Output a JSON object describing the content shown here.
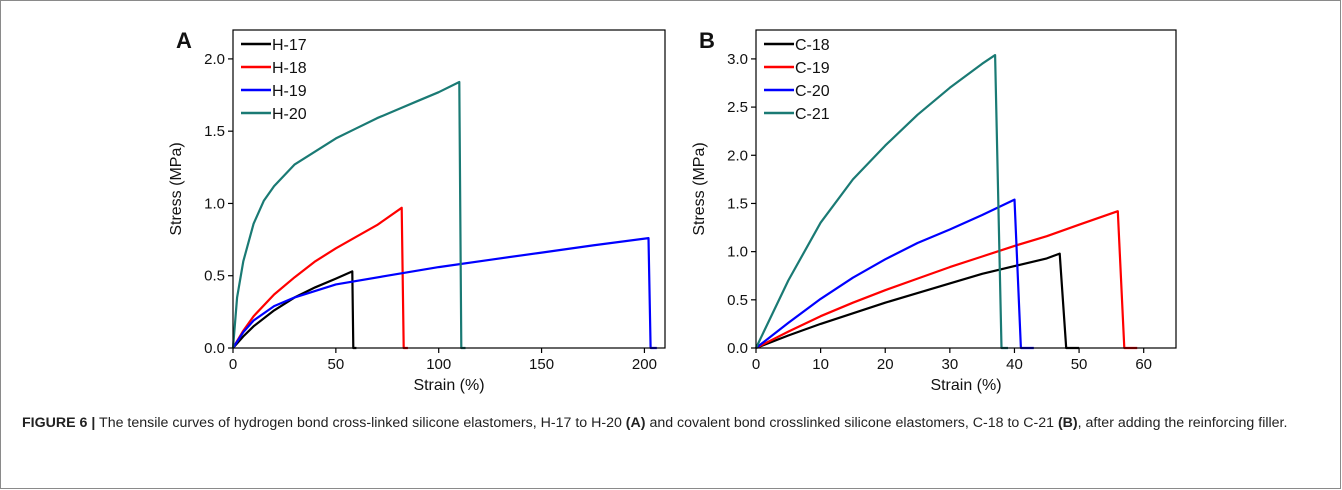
{
  "figure": {
    "caption": {
      "lead": "FIGURE 6 |",
      "text1": " The tensile curves of hydrogen bond cross-linked silicone elastomers, H-17 to H-20 ",
      "ref_a": "(A)",
      "text2": " and covalent bond crosslinked silicone elastomers, C-18 to C-21 ",
      "ref_b": "(B)",
      "text3": ", after adding the reinforcing filler."
    }
  },
  "chart_data": [
    {
      "type": "line",
      "panel_label": "A",
      "xlabel": "Strain (%)",
      "ylabel": "Stress (MPa)",
      "xlim": [
        0,
        210
      ],
      "ylim": [
        0,
        2.2
      ],
      "xticks": [
        0,
        50,
        100,
        150,
        200
      ],
      "xtick_labels": [
        "0",
        "50",
        "100",
        "150",
        "200"
      ],
      "yticks": [
        0.0,
        0.5,
        1.0,
        1.5,
        2.0
      ],
      "ytick_labels": [
        "0.0",
        "0.5",
        "1.0",
        "1.5",
        "2.0"
      ],
      "grid": false,
      "legend_position": "top-left",
      "series": [
        {
          "name": "H-17",
          "color": "#000000",
          "x": [
            0,
            5,
            10,
            20,
            30,
            40,
            50,
            58,
            58.5,
            60
          ],
          "y": [
            0,
            0.08,
            0.15,
            0.26,
            0.35,
            0.42,
            0.48,
            0.53,
            0.0,
            0.0
          ]
        },
        {
          "name": "H-18",
          "color": "#ff0000",
          "x": [
            0,
            5,
            10,
            20,
            30,
            40,
            50,
            60,
            70,
            82,
            83,
            85
          ],
          "y": [
            0,
            0.12,
            0.22,
            0.37,
            0.49,
            0.6,
            0.69,
            0.77,
            0.85,
            0.97,
            0.0,
            0.0
          ]
        },
        {
          "name": "H-19",
          "color": "#0000ff",
          "x": [
            0,
            5,
            10,
            20,
            30,
            50,
            75,
            100,
            125,
            150,
            175,
            202,
            203,
            206
          ],
          "y": [
            0,
            0.11,
            0.19,
            0.29,
            0.35,
            0.44,
            0.5,
            0.56,
            0.61,
            0.66,
            0.71,
            0.76,
            0.0,
            0.0
          ]
        },
        {
          "name": "H-20",
          "color": "#1a7a74",
          "x": [
            0,
            2,
            5,
            10,
            15,
            20,
            30,
            40,
            50,
            60,
            70,
            80,
            90,
            100,
            110,
            111,
            113
          ],
          "y": [
            0,
            0.35,
            0.6,
            0.86,
            1.02,
            1.12,
            1.27,
            1.36,
            1.45,
            1.52,
            1.59,
            1.65,
            1.71,
            1.77,
            1.84,
            0.0,
            0.0
          ]
        }
      ]
    },
    {
      "type": "line",
      "panel_label": "B",
      "xlabel": "Strain (%)",
      "ylabel": "Stress (MPa)",
      "xlim": [
        0,
        65
      ],
      "ylim": [
        0,
        3.3
      ],
      "xticks": [
        0,
        10,
        20,
        30,
        40,
        50,
        60
      ],
      "xtick_labels": [
        "0",
        "10",
        "20",
        "30",
        "40",
        "50",
        "60"
      ],
      "yticks": [
        0.0,
        0.5,
        1.0,
        1.5,
        2.0,
        2.5,
        3.0
      ],
      "ytick_labels": [
        "0.0",
        "0.5",
        "1.0",
        "1.5",
        "2.0",
        "2.5",
        "3.0"
      ],
      "grid": false,
      "legend_position": "top-left",
      "series": [
        {
          "name": "C-18",
          "color": "#000000",
          "x": [
            0,
            5,
            10,
            15,
            20,
            25,
            30,
            35,
            40,
            45,
            47,
            48,
            50
          ],
          "y": [
            0,
            0.13,
            0.25,
            0.36,
            0.47,
            0.57,
            0.67,
            0.77,
            0.85,
            0.93,
            0.98,
            0.0,
            0.0
          ]
        },
        {
          "name": "C-19",
          "color": "#ff0000",
          "x": [
            0,
            5,
            10,
            15,
            20,
            25,
            30,
            35,
            40,
            45,
            50,
            56,
            57,
            59
          ],
          "y": [
            0,
            0.17,
            0.33,
            0.47,
            0.6,
            0.72,
            0.84,
            0.95,
            1.06,
            1.16,
            1.28,
            1.42,
            0.0,
            0.0
          ]
        },
        {
          "name": "C-20",
          "color": "#0000ff",
          "x": [
            0,
            5,
            10,
            15,
            20,
            25,
            30,
            35,
            40,
            41,
            43
          ],
          "y": [
            0,
            0.26,
            0.51,
            0.73,
            0.92,
            1.09,
            1.23,
            1.38,
            1.54,
            0.0,
            0.0
          ]
        },
        {
          "name": "C-21",
          "color": "#1a7a74",
          "x": [
            0,
            5,
            10,
            15,
            20,
            25,
            30,
            35,
            37,
            38,
            39
          ],
          "y": [
            0,
            0.7,
            1.3,
            1.75,
            2.1,
            2.42,
            2.7,
            2.95,
            3.04,
            0.0,
            0.0
          ]
        }
      ]
    }
  ]
}
